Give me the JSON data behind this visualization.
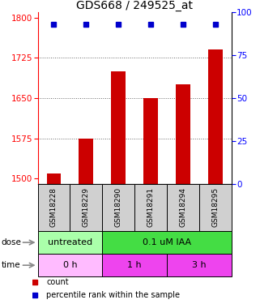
{
  "title": "GDS668 / 249525_at",
  "samples": [
    "GSM18228",
    "GSM18229",
    "GSM18290",
    "GSM18291",
    "GSM18294",
    "GSM18295"
  ],
  "bar_values": [
    1510,
    1575,
    1700,
    1650,
    1675,
    1740
  ],
  "dot_value_pct": 93,
  "ylim_left": [
    1490,
    1810
  ],
  "ylim_right": [
    0,
    100
  ],
  "yticks_left": [
    1500,
    1575,
    1650,
    1725,
    1800
  ],
  "yticks_right": [
    0,
    25,
    50,
    75,
    100
  ],
  "bar_color": "#cc0000",
  "dot_color": "#0000cc",
  "dose_labels": [
    {
      "label": "untreated",
      "start": 0,
      "end": 2,
      "color": "#aaffaa"
    },
    {
      "label": "0.1 uM IAA",
      "start": 2,
      "end": 6,
      "color": "#44dd44"
    }
  ],
  "time_labels": [
    {
      "label": "0 h",
      "start": 0,
      "end": 2,
      "color": "#ffbbff"
    },
    {
      "label": "1 h",
      "start": 2,
      "end": 4,
      "color": "#ee44ee"
    },
    {
      "label": "3 h",
      "start": 4,
      "end": 6,
      "color": "#ee44ee"
    }
  ],
  "legend_count_color": "#cc0000",
  "legend_pct_color": "#0000cc",
  "grid_color": "#666666",
  "title_fontsize": 10,
  "tick_fontsize": 7.5,
  "sample_fontsize": 6.5,
  "label_fontsize": 8
}
